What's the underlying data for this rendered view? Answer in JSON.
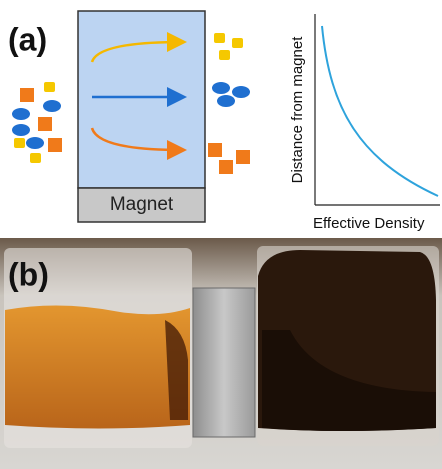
{
  "panel_a": {
    "label": "(a)",
    "magnet": "Magnet",
    "y_axis_label": "Distance from magnet",
    "x_axis_label": "Effective Density"
  },
  "panel_b": {
    "label": "(b)"
  }
}
